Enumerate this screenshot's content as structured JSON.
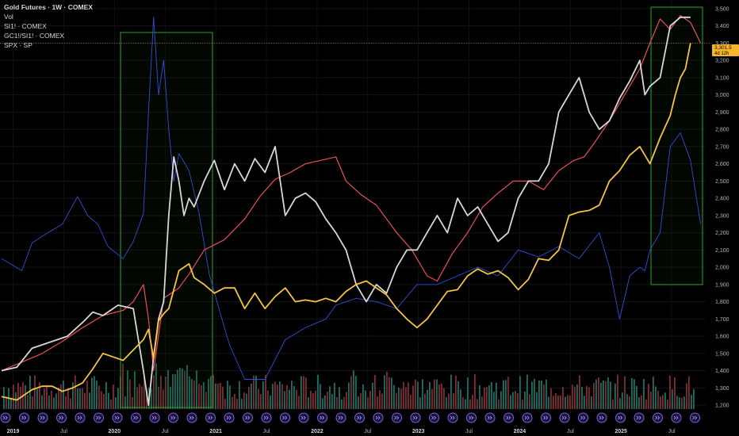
{
  "legend": {
    "line1": "Gold Futures · 1W · COMEX",
    "line2": "Vol",
    "line3": "SI1! · COMEX",
    "line4": "GC1!/SI1! · COMEX",
    "line5": "SPX · SP"
  },
  "price_tag": {
    "price": "3,301.5",
    "countdown": "4d 12h"
  },
  "colors": {
    "gold": "#f5c242",
    "silver": "#d7d7d7",
    "ratio": "#ef4b57",
    "spx": "#2e4fd8",
    "vol_up": "#1f6e63",
    "vol_down": "#7e2e33",
    "box": "#29a52a",
    "box_fill": "#0a1a0a",
    "tag": "#f7b52c"
  },
  "chart_data": {
    "type": "line",
    "title": "Gold Futures · 1W · COMEX",
    "x_ticks": [
      "2019",
      "Jul",
      "2020",
      "Jul",
      "2021",
      "Jul",
      "2022",
      "Jul",
      "2023",
      "Jul",
      "2024",
      "Jul",
      "2025",
      "Jul"
    ],
    "ylim": [
      1150,
      3550
    ],
    "y_ticks": [
      "1,200",
      "1,300",
      "1,400",
      "1,500",
      "1,600",
      "1,700",
      "1,800",
      "1,900",
      "2,000",
      "2,100",
      "2,200",
      "2,300",
      "2,400",
      "2,500",
      "2,600",
      "2,700",
      "2,800",
      "2,900",
      "3,000",
      "3,100",
      "3,200",
      "3,300",
      "3,400",
      "3,500"
    ],
    "y_tick_values": [
      1200,
      1300,
      1400,
      1500,
      1600,
      1700,
      1800,
      1900,
      2000,
      2100,
      2200,
      2300,
      2400,
      2500,
      2600,
      2700,
      2800,
      2900,
      3000,
      3100,
      3200,
      3300,
      3400,
      3500
    ],
    "x_range": [
      2018.7,
      2025.65
    ],
    "series": [
      {
        "name": "SPX · SP",
        "color_key": "spx",
        "width": 0.9,
        "x": [
          2018.7,
          2018.9,
          2019.0,
          2019.1,
          2019.3,
          2019.45,
          2019.55,
          2019.65,
          2019.75,
          2019.9,
          2020.0,
          2020.1,
          2020.15,
          2020.2,
          2020.25,
          2020.3,
          2020.35,
          2020.4,
          2020.45,
          2020.55,
          2020.65,
          2020.75,
          2020.85,
          2020.95,
          2021.1,
          2021.3,
          2021.5,
          2021.7,
          2021.9,
          2022.0,
          2022.2,
          2022.4,
          2022.6,
          2022.8,
          2023.0,
          2023.2,
          2023.4,
          2023.6,
          2023.8,
          2024.0,
          2024.2,
          2024.4,
          2024.6,
          2024.7,
          2024.8,
          2024.9,
          2025.0,
          2025.05,
          2025.1,
          2025.2,
          2025.3,
          2025.4,
          2025.5,
          2025.6
        ],
        "y": [
          2050,
          1980,
          2140,
          2180,
          2250,
          2410,
          2300,
          2250,
          2120,
          2050,
          2150,
          2310,
          2900,
          3450,
          3000,
          3200,
          2800,
          2500,
          2660,
          2560,
          2310,
          1960,
          1750,
          1550,
          1350,
          1350,
          1580,
          1650,
          1700,
          1780,
          1820,
          1800,
          1760,
          1900,
          1900,
          1950,
          2000,
          1950,
          2100,
          2060,
          2120,
          2050,
          2200,
          2000,
          1700,
          1950,
          2000,
          1980,
          2100,
          2200,
          2700,
          2780,
          2620,
          2250
        ]
      },
      {
        "name": "GC1!/SI1! · COMEX",
        "color_key": "ratio",
        "width": 1.2,
        "x": [
          2018.7,
          2018.9,
          2019.1,
          2019.3,
          2019.5,
          2019.7,
          2019.9,
          2020.0,
          2020.1,
          2020.15,
          2020.2,
          2020.3,
          2020.45,
          2020.55,
          2020.7,
          2020.9,
          2021.1,
          2021.25,
          2021.4,
          2021.55,
          2021.7,
          2021.85,
          2022.0,
          2022.1,
          2022.25,
          2022.4,
          2022.6,
          2022.75,
          2022.9,
          2023.0,
          2023.15,
          2023.3,
          2023.45,
          2023.6,
          2023.75,
          2023.9,
          2024.05,
          2024.2,
          2024.35,
          2024.45,
          2024.55,
          2024.7,
          2024.85,
          2025.0,
          2025.1,
          2025.2,
          2025.3,
          2025.4,
          2025.5,
          2025.6
        ],
        "y": [
          1400,
          1450,
          1500,
          1570,
          1650,
          1720,
          1750,
          1800,
          1900,
          1700,
          1400,
          1820,
          1880,
          1960,
          2100,
          2160,
          2280,
          2410,
          2510,
          2550,
          2600,
          2620,
          2640,
          2500,
          2420,
          2360,
          2200,
          2100,
          1950,
          1920,
          2080,
          2200,
          2350,
          2430,
          2500,
          2500,
          2450,
          2560,
          2620,
          2640,
          2720,
          2850,
          3000,
          3150,
          3300,
          3440,
          3380,
          3460,
          3420,
          3300
        ]
      },
      {
        "name": "SI1! · COMEX",
        "color_key": "silver",
        "width": 1.8,
        "x": [
          2018.7,
          2018.85,
          2019.0,
          2019.2,
          2019.35,
          2019.5,
          2019.6,
          2019.7,
          2019.85,
          2020.0,
          2020.1,
          2020.15,
          2020.2,
          2020.25,
          2020.3,
          2020.35,
          2020.4,
          2020.45,
          2020.5,
          2020.55,
          2020.6,
          2020.7,
          2020.8,
          2020.9,
          2021.0,
          2021.1,
          2021.2,
          2021.3,
          2021.4,
          2021.5,
          2021.6,
          2021.7,
          2021.8,
          2021.9,
          2022.0,
          2022.1,
          2022.2,
          2022.3,
          2022.4,
          2022.5,
          2022.6,
          2022.7,
          2022.8,
          2022.9,
          2023.0,
          2023.1,
          2023.2,
          2023.3,
          2023.4,
          2023.5,
          2023.6,
          2023.7,
          2023.8,
          2023.9,
          2024.0,
          2024.1,
          2024.2,
          2024.3,
          2024.4,
          2024.5,
          2024.6,
          2024.7,
          2024.8,
          2024.9,
          2025.0,
          2025.05,
          2025.1,
          2025.2,
          2025.3,
          2025.4,
          2025.5
        ],
        "y": [
          1400,
          1420,
          1530,
          1570,
          1600,
          1680,
          1740,
          1720,
          1780,
          1760,
          1400,
          1200,
          1480,
          1700,
          1800,
          2300,
          2640,
          2500,
          2300,
          2400,
          2350,
          2500,
          2620,
          2450,
          2600,
          2500,
          2630,
          2550,
          2700,
          2300,
          2400,
          2430,
          2380,
          2280,
          2200,
          2100,
          1900,
          1800,
          1900,
          1850,
          2000,
          2100,
          2100,
          2200,
          2300,
          2200,
          2400,
          2300,
          2350,
          2250,
          2150,
          2200,
          2400,
          2500,
          2500,
          2600,
          2900,
          3000,
          3100,
          2900,
          2800,
          2850,
          2980,
          3080,
          3200,
          3000,
          3050,
          3100,
          3400,
          3450,
          3450
        ]
      },
      {
        "name": "Gold Futures · 1W · COMEX",
        "color_key": "gold",
        "width": 1.8,
        "x": [
          2018.7,
          2018.85,
          2019.0,
          2019.1,
          2019.2,
          2019.3,
          2019.4,
          2019.5,
          2019.6,
          2019.7,
          2019.8,
          2019.9,
          2020.0,
          2020.1,
          2020.15,
          2020.2,
          2020.25,
          2020.3,
          2020.35,
          2020.45,
          2020.55,
          2020.6,
          2020.7,
          2020.8,
          2020.9,
          2021.0,
          2021.1,
          2021.2,
          2021.3,
          2021.4,
          2021.5,
          2021.6,
          2021.7,
          2021.8,
          2021.9,
          2022.0,
          2022.1,
          2022.2,
          2022.3,
          2022.4,
          2022.5,
          2022.6,
          2022.7,
          2022.8,
          2022.9,
          2023.0,
          2023.1,
          2023.2,
          2023.3,
          2023.4,
          2023.5,
          2023.6,
          2023.7,
          2023.8,
          2023.9,
          2024.0,
          2024.1,
          2024.2,
          2024.3,
          2024.4,
          2024.5,
          2024.6,
          2024.7,
          2024.8,
          2024.9,
          2025.0,
          2025.1,
          2025.2,
          2025.3,
          2025.35,
          2025.4,
          2025.45,
          2025.5
        ],
        "y": [
          1250,
          1230,
          1290,
          1310,
          1310,
          1280,
          1300,
          1330,
          1410,
          1500,
          1480,
          1460,
          1520,
          1580,
          1640,
          1470,
          1690,
          1730,
          1760,
          1980,
          2020,
          1940,
          1900,
          1850,
          1880,
          1880,
          1760,
          1850,
          1760,
          1830,
          1880,
          1800,
          1810,
          1800,
          1820,
          1800,
          1860,
          1900,
          1920,
          1880,
          1840,
          1760,
          1700,
          1650,
          1700,
          1780,
          1860,
          1870,
          1950,
          1990,
          1960,
          1980,
          1940,
          1870,
          1930,
          2050,
          2040,
          2100,
          2300,
          2320,
          2330,
          2360,
          2500,
          2560,
          2650,
          2700,
          2600,
          2750,
          2880,
          3000,
          3100,
          3150,
          3300
        ]
      }
    ]
  }
}
